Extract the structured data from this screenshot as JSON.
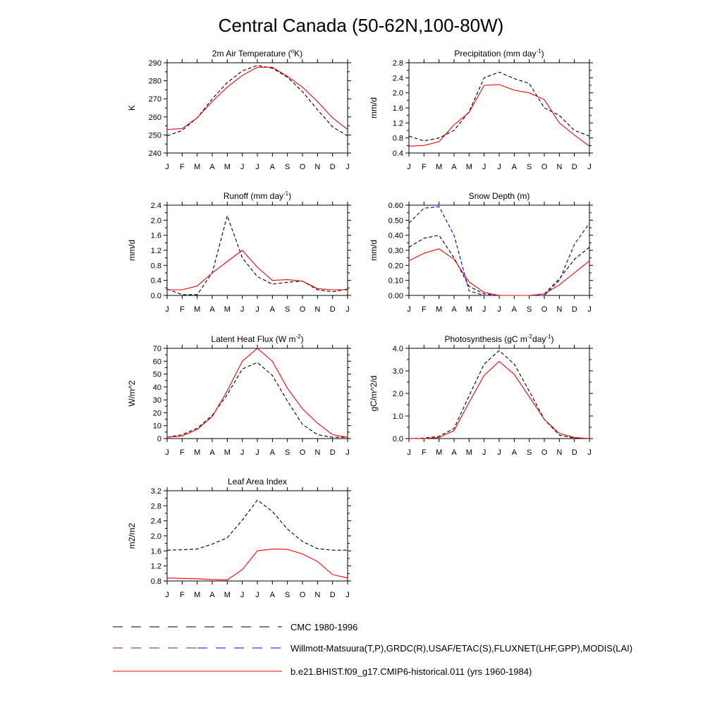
{
  "title": "Central Canada (50-62N,100-80W)",
  "months": [
    "J",
    "F",
    "M",
    "A",
    "M",
    "J",
    "J",
    "A",
    "S",
    "O",
    "N",
    "D",
    "J"
  ],
  "colors": {
    "model": "#ff0000",
    "obs": "#000000",
    "obs_snow": "#0000ff"
  },
  "legend": [
    {
      "label": "CMC 1980-1996",
      "style": "dash-black"
    },
    {
      "label": "Willmott-Matsuura(T,P),GRDC(R),USAF/ETAC(S),FLUXNET(LHF,GPP),MODIS(LAI)",
      "style": "dash-mixed"
    },
    {
      "label": "b.e21.BHIST.f09_g17.CMIP6-historical.011 (yrs 1960-1984)",
      "style": "solid-red"
    }
  ],
  "chart_data": [
    {
      "id": "tsa",
      "type": "line",
      "title_parts": [
        "2m Air Temperature (",
        "o",
        "K)"
      ],
      "ylabel": "K",
      "ylim": [
        240,
        290
      ],
      "yticks": [
        240,
        250,
        260,
        270,
        280,
        290
      ],
      "ytick_labels": [
        "240",
        "250",
        "260",
        "270",
        "280",
        "290"
      ],
      "series": [
        {
          "role": "obs",
          "dash": true,
          "values": [
            249.5,
            252.5,
            259.5,
            270,
            279,
            285.5,
            288.5,
            287,
            282,
            274,
            264,
            254.5,
            249.5
          ]
        },
        {
          "role": "model",
          "dash": false,
          "values": [
            253,
            253.5,
            259.5,
            268.5,
            276.5,
            283,
            287.5,
            287.5,
            282.5,
            276.5,
            268.5,
            259.5,
            253
          ]
        }
      ]
    },
    {
      "id": "prec",
      "type": "line",
      "title_parts": [
        "Precipitation (mm day",
        "-1",
        ")"
      ],
      "ylabel": "mm/d",
      "ylim": [
        0.4,
        2.8
      ],
      "yticks": [
        0.4,
        0.8,
        1.2,
        1.6,
        2.0,
        2.4,
        2.8
      ],
      "ytick_labels": [
        "0.4",
        "0.8",
        "1.2",
        "1.6",
        "2.0",
        "2.4",
        "2.8"
      ],
      "series": [
        {
          "role": "obs",
          "dash": true,
          "values": [
            0.85,
            0.72,
            0.8,
            1.0,
            1.5,
            2.4,
            2.55,
            2.38,
            2.25,
            1.6,
            1.4,
            1.0,
            0.85
          ]
        },
        {
          "role": "model",
          "dash": false,
          "values": [
            0.58,
            0.6,
            0.7,
            1.15,
            1.48,
            2.2,
            2.22,
            2.07,
            2.0,
            1.82,
            1.2,
            0.88,
            0.58
          ]
        }
      ]
    },
    {
      "id": "runoff",
      "type": "line",
      "title_parts": [
        "Runoff (mm day",
        "-1",
        ")"
      ],
      "ylabel": "mm/d",
      "ylim": [
        0.0,
        2.4
      ],
      "yticks": [
        0.0,
        0.4,
        0.8,
        1.2,
        1.6,
        2.0,
        2.4
      ],
      "ytick_labels": [
        "0.0",
        "0.4",
        "0.8",
        "1.2",
        "1.6",
        "2.0",
        "2.4"
      ],
      "series": [
        {
          "role": "obs",
          "dash": true,
          "values": [
            0.17,
            0.02,
            0.02,
            0.6,
            2.12,
            1.0,
            0.5,
            0.3,
            0.35,
            0.38,
            0.15,
            0.1,
            0.17
          ]
        },
        {
          "role": "model",
          "dash": false,
          "values": [
            0.15,
            0.15,
            0.25,
            0.6,
            0.9,
            1.2,
            0.75,
            0.4,
            0.42,
            0.38,
            0.18,
            0.15,
            0.15
          ]
        }
      ]
    },
    {
      "id": "snow",
      "type": "line",
      "title_parts": [
        "Snow Depth (m)"
      ],
      "ylabel": "mm/d",
      "ylim": [
        0.0,
        0.6
      ],
      "yticks": [
        0.0,
        0.1,
        0.2,
        0.3,
        0.4,
        0.5,
        0.6
      ],
      "ytick_labels": [
        "0.00",
        "0.10",
        "0.20",
        "0.30",
        "0.40",
        "0.50",
        "0.60"
      ],
      "series": [
        {
          "role": "obs_snow",
          "dash": true,
          "values": [
            0.48,
            0.58,
            0.59,
            0.4,
            0.03,
            0.0,
            0.0,
            0.0,
            0.0,
            0.0,
            0.1,
            0.34,
            0.48
          ]
        },
        {
          "role": "obs",
          "dash": true,
          "values": [
            0.32,
            0.38,
            0.4,
            0.25,
            0.06,
            0.01,
            0.0,
            0.0,
            0.0,
            0.01,
            0.11,
            0.24,
            0.32
          ]
        },
        {
          "role": "model",
          "dash": false,
          "values": [
            0.23,
            0.28,
            0.31,
            0.24,
            0.09,
            0.02,
            0.0,
            0.0,
            0.0,
            0.01,
            0.07,
            0.15,
            0.23
          ]
        }
      ]
    },
    {
      "id": "lhf",
      "type": "line",
      "title_parts": [
        "Latent Heat Flux (W m",
        "-2",
        ")"
      ],
      "ylabel": "W/m^2",
      "ylim": [
        0,
        70
      ],
      "yticks": [
        0,
        10,
        20,
        30,
        40,
        50,
        60,
        70
      ],
      "ytick_labels": [
        "0",
        "10",
        "20",
        "30",
        "40",
        "50",
        "60",
        "70"
      ],
      "series": [
        {
          "role": "obs",
          "dash": true,
          "values": [
            1,
            3,
            8,
            18,
            34,
            54,
            59,
            49,
            29,
            11,
            3,
            1,
            1
          ]
        },
        {
          "role": "model",
          "dash": false,
          "values": [
            1,
            2,
            7,
            17,
            37,
            60,
            70,
            60,
            39,
            23,
            12,
            3,
            1
          ]
        }
      ]
    },
    {
      "id": "gpp",
      "type": "line",
      "title_parts": [
        "Photosynthesis (gC m",
        "-2",
        "day",
        "-1",
        ")"
      ],
      "ylabel": "gC/m^2/d",
      "ylim": [
        0.0,
        4.0
      ],
      "yticks": [
        0.0,
        1.0,
        2.0,
        3.0,
        4.0
      ],
      "ytick_labels": [
        "0.0",
        "1.0",
        "2.0",
        "3.0",
        "4.0"
      ],
      "series": [
        {
          "role": "obs",
          "dash": true,
          "values": [
            0.0,
            0.02,
            0.1,
            0.45,
            1.9,
            3.3,
            3.9,
            3.3,
            2.1,
            0.85,
            0.15,
            0.02,
            0.0
          ]
        },
        {
          "role": "model",
          "dash": false,
          "values": [
            0.0,
            0.0,
            0.05,
            0.35,
            1.6,
            2.8,
            3.42,
            2.85,
            1.85,
            0.85,
            0.23,
            0.05,
            0.0
          ]
        }
      ]
    },
    {
      "id": "lai",
      "type": "line",
      "title_parts": [
        "Leaf Area Index"
      ],
      "ylabel": "m2/m2",
      "ylim": [
        0.8,
        3.2
      ],
      "yticks": [
        0.8,
        1.2,
        1.6,
        2.0,
        2.4,
        2.8,
        3.2
      ],
      "ytick_labels": [
        "0.8",
        "1.2",
        "1.6",
        "2.0",
        "2.4",
        "2.8",
        "3.2"
      ],
      "series": [
        {
          "role": "obs",
          "dash": true,
          "values": [
            1.62,
            1.63,
            1.65,
            1.78,
            1.95,
            2.42,
            2.95,
            2.65,
            2.18,
            1.85,
            1.66,
            1.62,
            1.62
          ]
        },
        {
          "role": "model",
          "dash": false,
          "values": [
            0.88,
            0.87,
            0.86,
            0.84,
            0.83,
            1.1,
            1.6,
            1.65,
            1.64,
            1.52,
            1.32,
            0.97,
            0.88
          ]
        }
      ]
    }
  ]
}
